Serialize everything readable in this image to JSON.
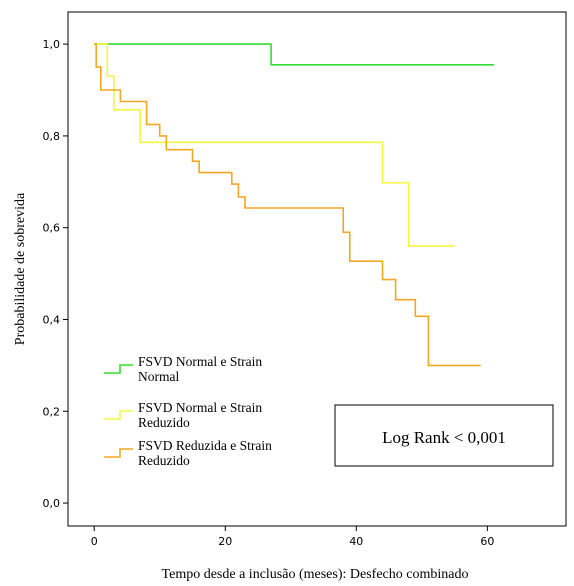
{
  "chart_data": {
    "type": "line",
    "subtype": "kaplan-meier",
    "xlabel": "Tempo desde a inclusão (meses): Desfecho combinado",
    "ylabel": "Probabilidade de sobrevida",
    "xlim": [
      -4,
      72
    ],
    "ylim": [
      -0.05,
      1.07
    ],
    "x_ticks": [
      0,
      20,
      40,
      60
    ],
    "x_tick_labels": [
      "0",
      "20",
      "40",
      "60"
    ],
    "y_ticks": [
      0,
      0.2,
      0.4,
      0.6,
      0.8,
      1.0
    ],
    "y_tick_labels": [
      "0,0",
      "0,2",
      "0,4",
      "0,6",
      "0,8",
      "1,0"
    ],
    "grid": false,
    "legend_position": "bottom-left",
    "annotation": "Log Rank < 0,001",
    "series": [
      {
        "name": "FSVD Normal e Strain Normal",
        "legend_lines": [
          "FSVD Normal e Strain",
          "Normal"
        ],
        "color": "#33dd33",
        "steps": [
          [
            0,
            1.0
          ],
          [
            27,
            0.955
          ],
          [
            61,
            0.955
          ]
        ]
      },
      {
        "name": "FSVD Normal e Strain Reduzido",
        "legend_lines": [
          "FSVD Normal e Strain",
          "Reduzido"
        ],
        "color": "#f5f542",
        "steps": [
          [
            0,
            1.0
          ],
          [
            2,
            0.93
          ],
          [
            3,
            0.857
          ],
          [
            7,
            0.786
          ],
          [
            44,
            0.698
          ],
          [
            48,
            0.56
          ],
          [
            55,
            0.56
          ]
        ]
      },
      {
        "name": "FSVD Reduzida e Strain Reduzido",
        "legend_lines": [
          "FSVD Reduzida e Strain",
          "Reduzido"
        ],
        "color": "#f5a623",
        "steps": [
          [
            0,
            1.0
          ],
          [
            0.3,
            0.95
          ],
          [
            1,
            0.9
          ],
          [
            4,
            0.875
          ],
          [
            8,
            0.825
          ],
          [
            10,
            0.8
          ],
          [
            11,
            0.77
          ],
          [
            15,
            0.745
          ],
          [
            16,
            0.72
          ],
          [
            21,
            0.695
          ],
          [
            22,
            0.667
          ],
          [
            23,
            0.643
          ],
          [
            38,
            0.59
          ],
          [
            39,
            0.527
          ],
          [
            44,
            0.487
          ],
          [
            46,
            0.443
          ],
          [
            49,
            0.407
          ],
          [
            51,
            0.3
          ],
          [
            59,
            0.3
          ]
        ]
      }
    ]
  }
}
